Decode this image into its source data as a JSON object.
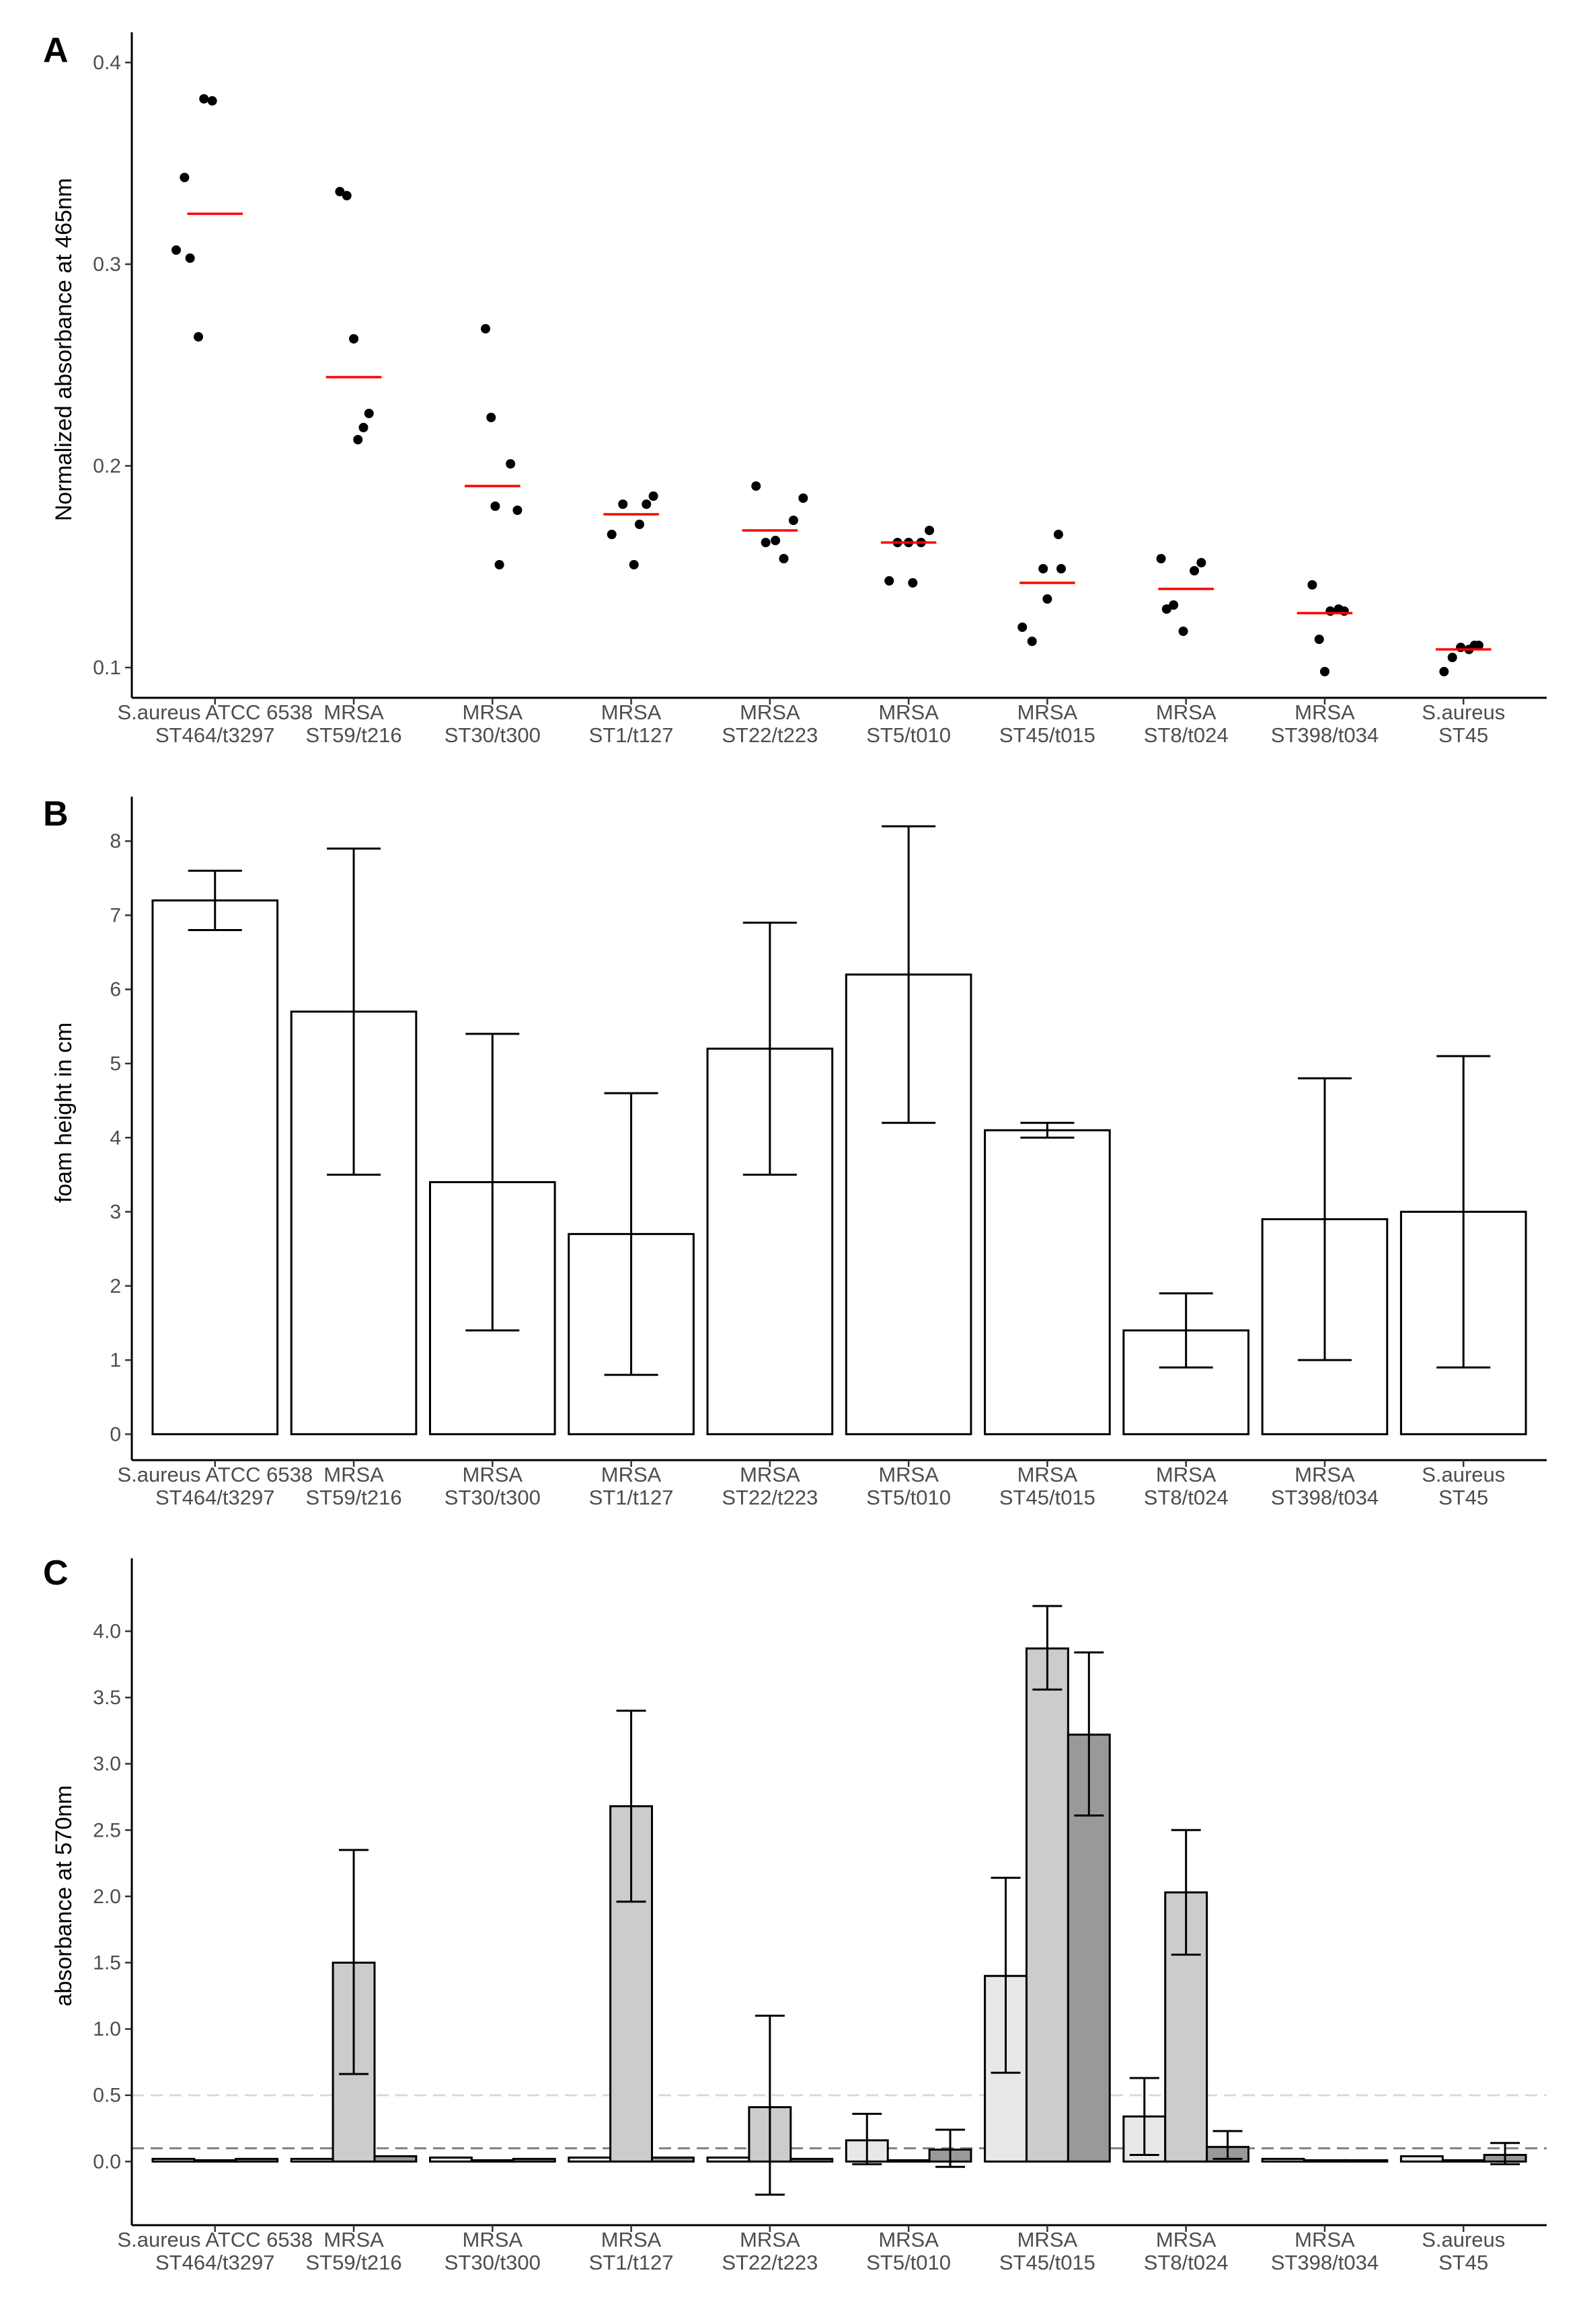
{
  "figure": {
    "panels": [
      "A",
      "B",
      "C"
    ]
  },
  "colors": {
    "axis": "#000000",
    "tick_text": "#4d4d4d",
    "median": "#ff0000",
    "point": "#000000",
    "bar_fill_b": "#ffffff",
    "c_series": [
      "#e8e8e8",
      "#cccccc",
      "#999999"
    ],
    "c_ref_light": "#d9d9d9",
    "c_ref_dark": "#808080"
  },
  "chart_data": [
    {
      "panel": "A",
      "type": "scatter",
      "title": "",
      "xlabel": "",
      "ylabel": "Normalized absorbance at 465nm",
      "ylim": [
        0.085,
        0.415
      ],
      "yticks": [
        0.1,
        0.2,
        0.3,
        0.4
      ],
      "ytick_labels": [
        "0.1",
        "0.2",
        "0.3",
        "0.4"
      ],
      "categories": [
        [
          "S.aureus ATCC 6538",
          "ST464/t3297"
        ],
        [
          "MRSA",
          "ST59/t216"
        ],
        [
          "MRSA",
          "ST30/t300"
        ],
        [
          "MRSA",
          "ST1/t127"
        ],
        [
          "MRSA",
          "ST22/t223"
        ],
        [
          "MRSA",
          "ST5/t010"
        ],
        [
          "MRSA",
          "ST45/t015"
        ],
        [
          "MRSA",
          "ST8/t024"
        ],
        [
          "MRSA",
          "ST398/t034"
        ],
        [
          "S.aureus",
          "ST45"
        ]
      ],
      "points": [
        [
          [
            -0.28,
            0.307
          ],
          [
            -0.22,
            0.343
          ],
          [
            -0.18,
            0.303
          ],
          [
            -0.12,
            0.264
          ],
          [
            -0.08,
            0.382
          ],
          [
            -0.02,
            0.381
          ]
        ],
        [
          [
            -0.1,
            0.336
          ],
          [
            -0.05,
            0.334
          ],
          [
            0.0,
            0.263
          ],
          [
            0.03,
            0.213
          ],
          [
            0.07,
            0.219
          ],
          [
            0.11,
            0.226
          ]
        ],
        [
          [
            -0.05,
            0.268
          ],
          [
            -0.01,
            0.224
          ],
          [
            0.02,
            0.18
          ],
          [
            0.05,
            0.151
          ],
          [
            0.13,
            0.201
          ],
          [
            0.18,
            0.178
          ]
        ],
        [
          [
            -0.14,
            0.166
          ],
          [
            -0.06,
            0.181
          ],
          [
            0.02,
            0.151
          ],
          [
            0.06,
            0.171
          ],
          [
            0.11,
            0.181
          ],
          [
            0.16,
            0.185
          ]
        ],
        [
          [
            -0.1,
            0.19
          ],
          [
            -0.03,
            0.162
          ],
          [
            0.04,
            0.163
          ],
          [
            0.1,
            0.154
          ],
          [
            0.17,
            0.173
          ],
          [
            0.24,
            0.184
          ]
        ],
        [
          [
            -0.14,
            0.143
          ],
          [
            -0.08,
            0.162
          ],
          [
            0.0,
            0.162
          ],
          [
            0.03,
            0.142
          ],
          [
            0.09,
            0.162
          ],
          [
            0.15,
            0.168
          ]
        ],
        [
          [
            -0.18,
            0.12
          ],
          [
            -0.11,
            0.113
          ],
          [
            -0.03,
            0.149
          ],
          [
            0.0,
            0.134
          ],
          [
            0.1,
            0.149
          ],
          [
            0.08,
            0.166
          ]
        ],
        [
          [
            -0.18,
            0.154
          ],
          [
            -0.14,
            0.129
          ],
          [
            -0.09,
            0.131
          ],
          [
            -0.02,
            0.118
          ],
          [
            0.06,
            0.148
          ],
          [
            0.11,
            0.152
          ]
        ],
        [
          [
            -0.09,
            0.141
          ],
          [
            -0.04,
            0.114
          ],
          [
            0.0,
            0.098
          ],
          [
            0.04,
            0.128
          ],
          [
            0.1,
            0.129
          ],
          [
            0.14,
            0.128
          ]
        ],
        [
          [
            -0.14,
            0.098
          ],
          [
            -0.08,
            0.105
          ],
          [
            -0.02,
            0.11
          ],
          [
            0.04,
            0.109
          ],
          [
            0.08,
            0.111
          ],
          [
            0.11,
            0.111
          ]
        ]
      ],
      "medians": [
        0.325,
        0.244,
        0.19,
        0.176,
        0.168,
        0.162,
        0.142,
        0.139,
        0.127,
        0.109
      ]
    },
    {
      "panel": "B",
      "type": "bar",
      "title": "",
      "xlabel": "",
      "ylabel": "foam height in cm",
      "ylim": [
        -0.35,
        8.6
      ],
      "yticks": [
        0,
        1,
        2,
        3,
        4,
        5,
        6,
        7,
        8
      ],
      "ytick_labels": [
        "0",
        "1",
        "2",
        "3",
        "4",
        "5",
        "6",
        "7",
        "8"
      ],
      "categories": [
        [
          "S.aureus ATCC 6538",
          "ST464/t3297"
        ],
        [
          "MRSA",
          "ST59/t216"
        ],
        [
          "MRSA",
          "ST30/t300"
        ],
        [
          "MRSA",
          "ST1/t127"
        ],
        [
          "MRSA",
          "ST22/t223"
        ],
        [
          "MRSA",
          "ST5/t010"
        ],
        [
          "MRSA",
          "ST45/t015"
        ],
        [
          "MRSA",
          "ST8/t024"
        ],
        [
          "MRSA",
          "ST398/t034"
        ],
        [
          "S.aureus",
          "ST45"
        ]
      ],
      "values": [
        7.2,
        5.7,
        3.4,
        2.7,
        5.2,
        6.2,
        4.1,
        1.4,
        2.9,
        3.0
      ],
      "errors": [
        [
          6.8,
          7.6
        ],
        [
          3.5,
          7.9
        ],
        [
          1.4,
          5.4
        ],
        [
          0.8,
          4.6
        ],
        [
          3.5,
          6.9
        ],
        [
          4.2,
          8.2
        ],
        [
          4.0,
          4.2
        ],
        [
          0.9,
          1.9
        ],
        [
          1.0,
          4.8
        ],
        [
          0.9,
          5.1
        ]
      ]
    },
    {
      "panel": "C",
      "type": "bar",
      "title": "",
      "xlabel": "",
      "ylabel": "absorbance at 570nm",
      "ylim": [
        -0.48,
        4.55
      ],
      "yticks": [
        0.0,
        0.5,
        1.0,
        1.5,
        2.0,
        2.5,
        3.0,
        3.5,
        4.0
      ],
      "ytick_labels": [
        "0.0",
        "0.5",
        "1.0",
        "1.5",
        "2.0",
        "2.5",
        "3.0",
        "3.5",
        "4.0"
      ],
      "reference_lines": [
        0.5,
        0.1
      ],
      "categories": [
        [
          "S.aureus ATCC 6538",
          "ST464/t3297"
        ],
        [
          "MRSA",
          "ST59/t216"
        ],
        [
          "MRSA",
          "ST30/t300"
        ],
        [
          "MRSA",
          "ST1/t127"
        ],
        [
          "MRSA",
          "ST22/t223"
        ],
        [
          "MRSA",
          "ST5/t010"
        ],
        [
          "MRSA",
          "ST45/t015"
        ],
        [
          "MRSA",
          "ST8/t024"
        ],
        [
          "MRSA",
          "ST398/t034"
        ],
        [
          "S.aureus",
          "ST45"
        ]
      ],
      "series": [
        {
          "name": "",
          "values": [
            0.02,
            0.02,
            0.03,
            0.03,
            0.03,
            0.16,
            1.4,
            0.34,
            0.02,
            0.04
          ],
          "errors": [
            null,
            null,
            null,
            null,
            null,
            [
              -0.02,
              0.36
            ],
            [
              0.67,
              2.14
            ],
            [
              0.05,
              0.63
            ],
            null,
            null
          ]
        },
        {
          "name": "",
          "values": [
            0.01,
            1.5,
            0.01,
            2.68,
            0.41,
            0.01,
            3.87,
            2.03,
            0.01,
            0.01
          ],
          "errors": [
            null,
            [
              0.66,
              2.35
            ],
            null,
            [
              1.96,
              3.4
            ],
            [
              -0.25,
              1.1
            ],
            null,
            [
              3.56,
              4.19
            ],
            [
              1.56,
              2.5
            ],
            null,
            null
          ]
        },
        {
          "name": "",
          "values": [
            0.02,
            0.04,
            0.02,
            0.03,
            0.02,
            0.09,
            3.22,
            0.11,
            0.01,
            0.05
          ],
          "errors": [
            null,
            null,
            null,
            null,
            null,
            [
              -0.04,
              0.24
            ],
            [
              2.61,
              3.84
            ],
            [
              0.02,
              0.23
            ],
            null,
            [
              -0.02,
              0.14
            ]
          ]
        }
      ]
    }
  ]
}
